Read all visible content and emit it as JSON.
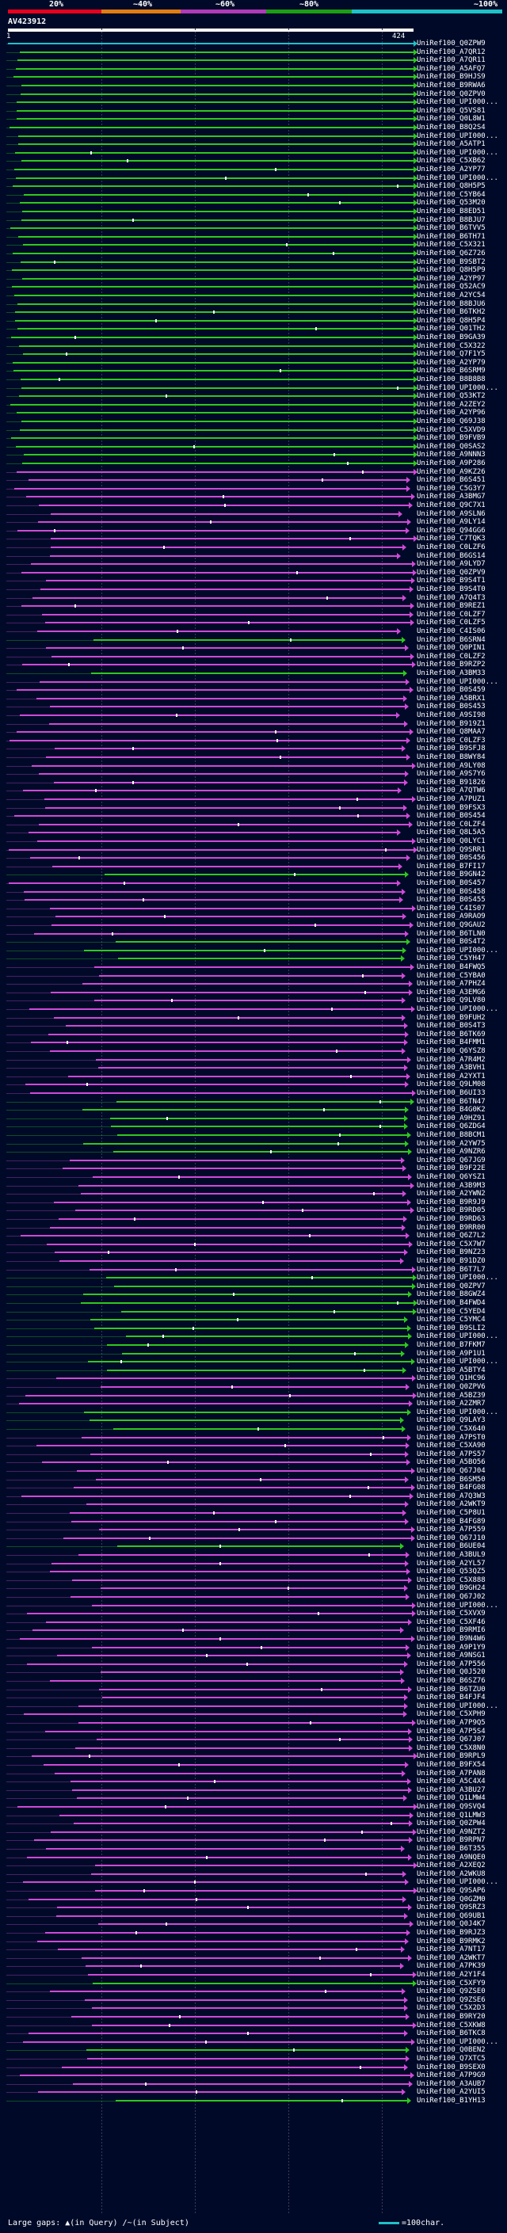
{
  "scale": {
    "labels": [
      "20%",
      "~40%",
      "~60%",
      "~80%",
      "~100%"
    ],
    "colors": [
      "#e8001c",
      "#e07d10",
      "#b03ab8",
      "#1c9e14",
      "#1fc1c8"
    ]
  },
  "query": {
    "id": "AV423912",
    "start": "1",
    "end": "424"
  },
  "colors": {
    "magenta": "#d049d8",
    "green": "#2fc81c",
    "cyan": "#1fc1c8",
    "background": "#000a28"
  },
  "legend": {
    "label": "Large gaps:",
    "query_gap": "(in Query)",
    "subject_gap": "(in Subject)",
    "char_label": "=100char."
  },
  "hits": [
    {
      "label": "UniRef100_Q0ZPW9",
      "color": "cyan"
    },
    {
      "label": "UniRef100_A7QR12",
      "color": "green"
    },
    {
      "label": "UniRef100_A7QR11",
      "color": "green"
    },
    {
      "label": "UniRef100_A5AFQ7",
      "color": "green"
    },
    {
      "label": "UniRef100_B9HJS9",
      "color": "green"
    },
    {
      "label": "UniRef100_B9RWA6",
      "color": "green"
    },
    {
      "label": "UniRef100_Q0ZPV0",
      "color": "green"
    },
    {
      "label": "UniRef100_UPI000...",
      "color": "green"
    },
    {
      "label": "UniRef100_Q5VS81",
      "color": "green"
    },
    {
      "label": "UniRef100_Q0L8W1",
      "color": "green"
    },
    {
      "label": "UniRef100_B8Q2S4",
      "color": "green"
    },
    {
      "label": "UniRef100_UPI000...",
      "color": "green"
    },
    {
      "label": "UniRef100_A5ATP1",
      "color": "green"
    },
    {
      "label": "UniRef100_UPI000...",
      "color": "green"
    },
    {
      "label": "UniRef100_C5XB62",
      "color": "green"
    },
    {
      "label": "UniRef100_A2YP77",
      "color": "green"
    },
    {
      "label": "UniRef100_UPI000...",
      "color": "green"
    },
    {
      "label": "UniRef100_Q8H5P5",
      "color": "green"
    },
    {
      "label": "UniRef100_C5YB64",
      "color": "green"
    },
    {
      "label": "UniRef100_Q53M20",
      "color": "green"
    },
    {
      "label": "UniRef100_B8ED51",
      "color": "green"
    },
    {
      "label": "UniRef100_B8BJU7",
      "color": "green"
    },
    {
      "label": "UniRef100_B6TVV5",
      "color": "green"
    },
    {
      "label": "UniRef100_B6TH71",
      "color": "green"
    },
    {
      "label": "UniRef100_C5X321",
      "color": "green"
    },
    {
      "label": "UniRef100_Q6Z726",
      "color": "green"
    },
    {
      "label": "UniRef100_B9SBT2",
      "color": "green"
    },
    {
      "label": "UniRef100_Q8H5P9",
      "color": "green"
    },
    {
      "label": "UniRef100_A2YP97",
      "color": "green"
    },
    {
      "label": "UniRef100_Q52AC9",
      "color": "green"
    },
    {
      "label": "UniRef100_A2YC54",
      "color": "green"
    },
    {
      "label": "UniRef100_B8BJU6",
      "color": "green"
    },
    {
      "label": "UniRef100_B6TKH2",
      "color": "green"
    },
    {
      "label": "UniRef100_Q8H5P4",
      "color": "green"
    },
    {
      "label": "UniRef100_Q01TH2",
      "color": "green"
    },
    {
      "label": "UniRef100_B9GA39",
      "color": "green"
    },
    {
      "label": "UniRef100_C5X322",
      "color": "green"
    },
    {
      "label": "UniRef100_Q7F1Y5",
      "color": "green"
    },
    {
      "label": "UniRef100_A2YP79",
      "color": "green"
    },
    {
      "label": "UniRef100_B6SRM9",
      "color": "green"
    },
    {
      "label": "UniRef100_B8B8B8",
      "color": "green"
    },
    {
      "label": "UniRef100_UPI000...",
      "color": "green"
    },
    {
      "label": "UniRef100_Q53KT2",
      "color": "green"
    },
    {
      "label": "UniRef100_A2ZEY2",
      "color": "green"
    },
    {
      "label": "UniRef100_A2YP96",
      "color": "green"
    },
    {
      "label": "UniRef100_Q69J38",
      "color": "green"
    },
    {
      "label": "UniRef100_C5XVD9",
      "color": "green"
    },
    {
      "label": "UniRef100_B9FVB9",
      "color": "green"
    },
    {
      "label": "UniRef100_Q0SAS2",
      "color": "green"
    },
    {
      "label": "UniRef100_A9NNN3",
      "color": "green"
    },
    {
      "label": "UniRef100_A9P286",
      "color": "green"
    },
    {
      "label": "UniRef100_A9KZ26",
      "color": "magenta"
    },
    {
      "label": "UniRef100_B6S451",
      "color": "magenta"
    },
    {
      "label": "UniRef100_C5G3Y7",
      "color": "magenta"
    },
    {
      "label": "UniRef100_A3BMG7",
      "color": "magenta"
    },
    {
      "label": "UniRef100_Q9C7X1",
      "color": "magenta"
    },
    {
      "label": "UniRef100_A9SLN6",
      "color": "magenta"
    },
    {
      "label": "UniRef100_A9LY14",
      "color": "magenta"
    },
    {
      "label": "UniRef100_Q94GG6",
      "color": "magenta"
    },
    {
      "label": "UniRef100_C7TQK3",
      "color": "magenta"
    },
    {
      "label": "UniRef100_C0LZF6",
      "color": "magenta"
    },
    {
      "label": "UniRef100_B6GS14",
      "color": "magenta"
    },
    {
      "label": "UniRef100_A9LYD7",
      "color": "magenta"
    },
    {
      "label": "UniRef100_Q0ZPV9",
      "color": "magenta"
    },
    {
      "label": "UniRef100_B9S4T1",
      "color": "magenta"
    },
    {
      "label": "UniRef100_B9S4T0",
      "color": "magenta"
    },
    {
      "label": "UniRef100_A7Q4T3",
      "color": "magenta"
    },
    {
      "label": "UniRef100_B9REZ1",
      "color": "magenta"
    },
    {
      "label": "UniRef100_C0LZF7",
      "color": "magenta"
    },
    {
      "label": "UniRef100_C0LZF5",
      "color": "magenta"
    },
    {
      "label": "UniRef100_C4IS06",
      "color": "magenta"
    },
    {
      "label": "UniRef100_B6SRN4",
      "color": "green"
    },
    {
      "label": "UniRef100_Q0PIN1",
      "color": "magenta"
    },
    {
      "label": "UniRef100_C0LZF2",
      "color": "magenta"
    },
    {
      "label": "UniRef100_B9RZP2",
      "color": "magenta"
    },
    {
      "label": "UniRef100_A3BM33",
      "color": "green"
    },
    {
      "label": "UniRef100_UPI000...",
      "color": "magenta"
    },
    {
      "label": "UniRef100_B0S459",
      "color": "magenta"
    },
    {
      "label": "UniRef100_A5BRX1",
      "color": "magenta"
    },
    {
      "label": "UniRef100_B0S453",
      "color": "magenta"
    },
    {
      "label": "UniRef100_A9SI98",
      "color": "magenta"
    },
    {
      "label": "UniRef100_B919Z1",
      "color": "magenta"
    },
    {
      "label": "UniRef100_Q8MAA7",
      "color": "magenta"
    },
    {
      "label": "UniRef100_C0LZF3",
      "color": "magenta"
    },
    {
      "label": "UniRef100_B9SFJ8",
      "color": "magenta"
    },
    {
      "label": "UniRef100_B8WY84",
      "color": "magenta"
    },
    {
      "label": "UniRef100_A9LY08",
      "color": "magenta"
    },
    {
      "label": "UniRef100_A9S7Y6",
      "color": "magenta"
    },
    {
      "label": "UniRef100_B91826",
      "color": "magenta"
    },
    {
      "label": "UniRef100_A7QTW6",
      "color": "magenta"
    },
    {
      "label": "UniRef100_A7PUZ1",
      "color": "magenta"
    },
    {
      "label": "UniRef100_B9FSX3",
      "color": "magenta"
    },
    {
      "label": "UniRef100_B0S454",
      "color": "magenta"
    },
    {
      "label": "UniRef100_C0LZF4",
      "color": "magenta"
    },
    {
      "label": "UniRef100_Q8L5A5",
      "color": "magenta"
    },
    {
      "label": "UniRef100_Q0LYC1",
      "color": "magenta"
    },
    {
      "label": "UniRef100_Q9SRR1",
      "color": "magenta"
    },
    {
      "label": "UniRef100_B0S456",
      "color": "magenta"
    },
    {
      "label": "UniRef100_B7FI17",
      "color": "magenta"
    },
    {
      "label": "UniRef100_B9GN42",
      "color": "green"
    },
    {
      "label": "UniRef100_B0S457",
      "color": "magenta"
    },
    {
      "label": "UniRef100_B0S458",
      "color": "magenta"
    },
    {
      "label": "UniRef100_B0S455",
      "color": "magenta"
    },
    {
      "label": "UniRef100_C4IS07",
      "color": "magenta"
    },
    {
      "label": "UniRef100_A9RAO9",
      "color": "magenta"
    },
    {
      "label": "UniRef100_Q9GAU2",
      "color": "magenta"
    },
    {
      "label": "UniRef100_B6TLN0",
      "color": "magenta"
    },
    {
      "label": "UniRef100_B0S4T2",
      "color": "green"
    },
    {
      "label": "UniRef100_UPI000...",
      "color": "green"
    },
    {
      "label": "UniRef100_C5YH47",
      "color": "green"
    },
    {
      "label": "UniRef100_B4FWQ5",
      "color": "magenta"
    },
    {
      "label": "UniRef100_C5YBA0",
      "color": "magenta"
    },
    {
      "label": "UniRef100_A7PHZ4",
      "color": "magenta"
    },
    {
      "label": "UniRef100_A3EMG6",
      "color": "magenta"
    },
    {
      "label": "UniRef100_Q9LV80",
      "color": "magenta"
    },
    {
      "label": "UniRef100_UPI000...",
      "color": "magenta"
    },
    {
      "label": "UniRef100_B9FUH2",
      "color": "magenta"
    },
    {
      "label": "UniRef100_B0S4T3",
      "color": "magenta"
    },
    {
      "label": "UniRef100_B6TK69",
      "color": "magenta"
    },
    {
      "label": "UniRef100_B4FMM1",
      "color": "magenta"
    },
    {
      "label": "UniRef100_Q6YSZ8",
      "color": "magenta"
    },
    {
      "label": "UniRef100_A7R4M2",
      "color": "magenta"
    },
    {
      "label": "UniRef100_A3BVH1",
      "color": "magenta"
    },
    {
      "label": "UniRef100_A2YXT1",
      "color": "magenta"
    },
    {
      "label": "UniRef100_Q9LM08",
      "color": "magenta"
    },
    {
      "label": "UniRef100_B6UI33",
      "color": "magenta"
    },
    {
      "label": "UniRef100_B6TN47",
      "color": "green"
    },
    {
      "label": "UniRef100_B4G0K2",
      "color": "green"
    },
    {
      "label": "UniRef100_A9HZ91",
      "color": "green"
    },
    {
      "label": "UniRef100_Q6ZDG4",
      "color": "green"
    },
    {
      "label": "UniRef100_B8BCM1",
      "color": "green"
    },
    {
      "label": "UniRef100_A2YW75",
      "color": "green"
    },
    {
      "label": "UniRef100_A9NZR6",
      "color": "green"
    },
    {
      "label": "UniRef100_Q67JG9",
      "color": "magenta"
    },
    {
      "label": "UniRef100_B9F22E",
      "color": "magenta"
    },
    {
      "label": "UniRef100_Q6YSZ1",
      "color": "magenta"
    },
    {
      "label": "UniRef100_A3B9M3",
      "color": "magenta"
    },
    {
      "label": "UniRef100_A2YWN2",
      "color": "magenta"
    },
    {
      "label": "UniRef100_B9R9J9",
      "color": "magenta"
    },
    {
      "label": "UniRef100_B9RD05",
      "color": "magenta"
    },
    {
      "label": "UniRef100_B9RD63",
      "color": "magenta"
    },
    {
      "label": "UniRef100_B9RR00",
      "color": "magenta"
    },
    {
      "label": "UniRef100_Q6Z7L2",
      "color": "magenta"
    },
    {
      "label": "UniRef100_C5X7W7",
      "color": "magenta"
    },
    {
      "label": "UniRef100_B9NZ23",
      "color": "magenta"
    },
    {
      "label": "UniRef100_B91DZ0",
      "color": "magenta"
    },
    {
      "label": "UniRef100_B6T7L7",
      "color": "magenta"
    },
    {
      "label": "UniRef100_UPI000...",
      "color": "green"
    },
    {
      "label": "UniRef100_Q0ZPV7",
      "color": "green"
    },
    {
      "label": "UniRef100_B8GWZ4",
      "color": "green"
    },
    {
      "label": "UniRef100_B4FWD4",
      "color": "green"
    },
    {
      "label": "UniRef100_C5YED4",
      "color": "green"
    },
    {
      "label": "UniRef100_C5YMC4",
      "color": "green"
    },
    {
      "label": "UniRef100_B9SLI2",
      "color": "green"
    },
    {
      "label": "UniRef100_UPI000...",
      "color": "green"
    },
    {
      "label": "UniRef100_B7FKM7",
      "color": "green"
    },
    {
      "label": "UniRef100_A9P1U1",
      "color": "green"
    },
    {
      "label": "UniRef100_UPI000...",
      "color": "green"
    },
    {
      "label": "UniRef100_A5BTY4",
      "color": "green"
    },
    {
      "label": "UniRef100_Q1HC96",
      "color": "magenta"
    },
    {
      "label": "UniRef100_Q0ZPV6",
      "color": "magenta"
    },
    {
      "label": "UniRef100_A5BZ39",
      "color": "magenta"
    },
    {
      "label": "UniRef100_A2ZMR7",
      "color": "magenta"
    },
    {
      "label": "UniRef100_UPI000...",
      "color": "green"
    },
    {
      "label": "UniRef100_Q9LAY3",
      "color": "green"
    },
    {
      "label": "UniRef100_C5X640",
      "color": "green"
    },
    {
      "label": "UniRef100_A7PST0",
      "color": "magenta"
    },
    {
      "label": "UniRef100_C5XA90",
      "color": "magenta"
    },
    {
      "label": "UniRef100_A7PS57",
      "color": "magenta"
    },
    {
      "label": "UniRef100_A5BO56",
      "color": "magenta"
    },
    {
      "label": "UniRef100_Q67J04",
      "color": "magenta"
    },
    {
      "label": "UniRef100_B6SM50",
      "color": "magenta"
    },
    {
      "label": "UniRef100_B4FG08",
      "color": "magenta"
    },
    {
      "label": "UniRef100_A7Q3W3",
      "color": "magenta"
    },
    {
      "label": "UniRef100_A2WKT9",
      "color": "magenta"
    },
    {
      "label": "UniRef100_C5P8U1",
      "color": "magenta"
    },
    {
      "label": "UniRef100_B4FG89",
      "color": "magenta"
    },
    {
      "label": "UniRef100_A7P559",
      "color": "magenta"
    },
    {
      "label": "UniRef100_Q67J10",
      "color": "magenta"
    },
    {
      "label": "UniRef100_B6UE04",
      "color": "green"
    },
    {
      "label": "UniRef100_A3BUL9",
      "color": "magenta"
    },
    {
      "label": "UniRef100_A2YL57",
      "color": "magenta"
    },
    {
      "label": "UniRef100_Q53QZ5",
      "color": "magenta"
    },
    {
      "label": "UniRef100_C5X888",
      "color": "magenta"
    },
    {
      "label": "UniRef100_B9GH24",
      "color": "magenta"
    },
    {
      "label": "UniRef100_Q67J02",
      "color": "magenta"
    },
    {
      "label": "UniRef100_UPI000...",
      "color": "magenta"
    },
    {
      "label": "UniRef100_C5XVX9",
      "color": "magenta"
    },
    {
      "label": "UniRef100_C5XF46",
      "color": "magenta"
    },
    {
      "label": "UniRef100_B9RMI6",
      "color": "magenta"
    },
    {
      "label": "UniRef100_B9N4W6",
      "color": "magenta"
    },
    {
      "label": "UniRef100_A9P1Y9",
      "color": "magenta"
    },
    {
      "label": "UniRef100_A9NSG1",
      "color": "magenta"
    },
    {
      "label": "UniRef100_A7P556",
      "color": "magenta"
    },
    {
      "label": "UniRef100_Q0J520",
      "color": "magenta"
    },
    {
      "label": "UniRef100_B6SZ76",
      "color": "magenta"
    },
    {
      "label": "UniRef100_B6TZU0",
      "color": "magenta"
    },
    {
      "label": "UniRef100_B4FJF4",
      "color": "magenta"
    },
    {
      "label": "UniRef100_UPI000...",
      "color": "magenta"
    },
    {
      "label": "UniRef100_C5XPH9",
      "color": "magenta"
    },
    {
      "label": "UniRef100_A7P9Q5",
      "color": "magenta"
    },
    {
      "label": "UniRef100_A7P5S4",
      "color": "magenta"
    },
    {
      "label": "UniRef100_Q67J07",
      "color": "magenta"
    },
    {
      "label": "UniRef100_C5X8N0",
      "color": "magenta"
    },
    {
      "label": "UniRef100_B9RPL9",
      "color": "magenta"
    },
    {
      "label": "UniRef100_B9FX54",
      "color": "magenta"
    },
    {
      "label": "UniRef100_A7PAN8",
      "color": "magenta"
    },
    {
      "label": "UniRef100_A5C4X4",
      "color": "magenta"
    },
    {
      "label": "UniRef100_A3BU27",
      "color": "magenta"
    },
    {
      "label": "UniRef100_Q1LMW4",
      "color": "magenta"
    },
    {
      "label": "UniRef100_Q9SVQ4",
      "color": "magenta"
    },
    {
      "label": "UniRef100_Q1LMW3",
      "color": "magenta"
    },
    {
      "label": "UniRef100_Q0ZPW4",
      "color": "magenta"
    },
    {
      "label": "UniRef100_A9NZT2",
      "color": "magenta"
    },
    {
      "label": "UniRef100_B9RPN7",
      "color": "magenta"
    },
    {
      "label": "UniRef100_B6T355",
      "color": "magenta"
    },
    {
      "label": "UniRef100_A9NQE0",
      "color": "magenta"
    },
    {
      "label": "UniRef100_A2XEQ2",
      "color": "magenta"
    },
    {
      "label": "UniRef100_A2WKU8",
      "color": "magenta"
    },
    {
      "label": "UniRef100_UPI000...",
      "color": "magenta"
    },
    {
      "label": "UniRef100_Q9SAP6",
      "color": "magenta"
    },
    {
      "label": "UniRef100_Q0GZM0",
      "color": "magenta"
    },
    {
      "label": "UniRef100_Q9SRZ3",
      "color": "magenta"
    },
    {
      "label": "UniRef100_Q69UB1",
      "color": "magenta"
    },
    {
      "label": "UniRef100_Q0J4K7",
      "color": "magenta"
    },
    {
      "label": "UniRef100_B9RJZ3",
      "color": "magenta"
    },
    {
      "label": "UniRef100_B9RMK2",
      "color": "magenta"
    },
    {
      "label": "UniRef100_A7NT17",
      "color": "magenta"
    },
    {
      "label": "UniRef100_A2WKT7",
      "color": "magenta"
    },
    {
      "label": "UniRef100_A7PK39",
      "color": "magenta"
    },
    {
      "label": "UniRef100_A2Y1F4",
      "color": "magenta"
    },
    {
      "label": "UniRef100_C5XFY9",
      "color": "green"
    },
    {
      "label": "UniRef100_Q9ZSE0",
      "color": "magenta"
    },
    {
      "label": "UniRef100_Q9ZSE6",
      "color": "magenta"
    },
    {
      "label": "UniRef100_C5X2D3",
      "color": "magenta"
    },
    {
      "label": "UniRef100_B9RY20",
      "color": "magenta"
    },
    {
      "label": "UniRef100_C5XKW8",
      "color": "magenta"
    },
    {
      "label": "UniRef100_B6TKC8",
      "color": "magenta"
    },
    {
      "label": "UniRef100_UPI000...",
      "color": "magenta"
    },
    {
      "label": "UniRef100_Q0BEN2",
      "color": "green"
    },
    {
      "label": "UniRef100_Q7XTC5",
      "color": "magenta"
    },
    {
      "label": "UniRef100_B9SEX0",
      "color": "magenta"
    },
    {
      "label": "UniRef100_A7P9G9",
      "color": "magenta"
    },
    {
      "label": "UniRef100_A3AUB7",
      "color": "magenta"
    },
    {
      "label": "UniRef100_A2YUI5",
      "color": "magenta"
    },
    {
      "label": "UniRef100_B1YH13",
      "color": "green"
    }
  ]
}
